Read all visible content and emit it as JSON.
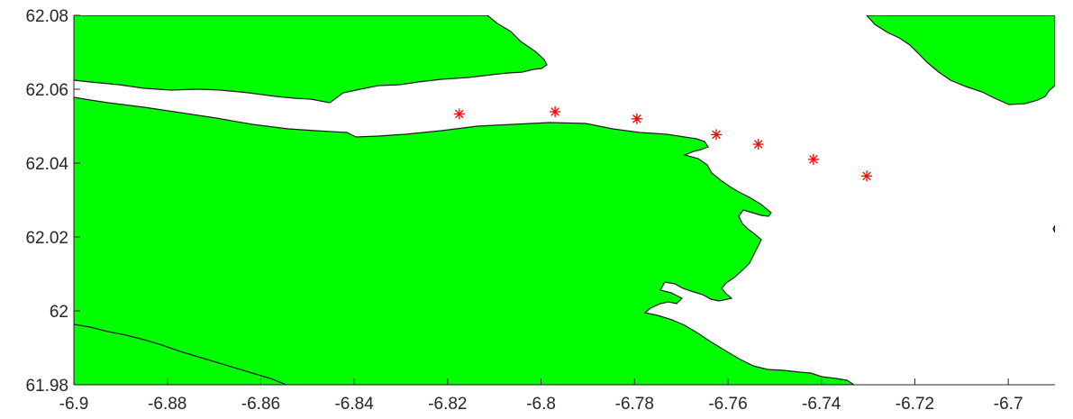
{
  "chart_data": {
    "type": "scatter",
    "map_background": true,
    "land_color": "#00ff00",
    "coastline_color": "#1a1a1a",
    "water_color": "#ffffff",
    "marker_color": "#ff0000",
    "marker_symbol": "*",
    "title": "",
    "xlabel": "",
    "ylabel": "",
    "xlim": [
      -6.9,
      -6.69
    ],
    "ylim": [
      61.98,
      62.08
    ],
    "grid": false,
    "xticks": [
      -6.9,
      -6.88,
      -6.86,
      -6.84,
      -6.82,
      -6.8,
      -6.78,
      -6.76,
      -6.74,
      -6.72,
      -6.7
    ],
    "yticks": [
      61.98,
      62,
      62.02,
      62.04,
      62.06,
      62.08
    ],
    "xtick_labels": [
      "-6.9",
      "-6.88",
      "-6.86",
      "-6.84",
      "-6.82",
      "-6.8",
      "-6.78",
      "-6.76",
      "-6.74",
      "-6.72",
      "-6.7"
    ],
    "ytick_labels": [
      "61.98",
      "62",
      "62.02",
      "62.04",
      "62.06",
      "62.08"
    ],
    "points": [
      {
        "x": -6.8175,
        "y": 62.0533
      },
      {
        "x": -6.797,
        "y": 62.0539
      },
      {
        "x": -6.7795,
        "y": 62.052
      },
      {
        "x": -6.7625,
        "y": 62.0477
      },
      {
        "x": -6.7535,
        "y": 62.0451
      },
      {
        "x": -6.7417,
        "y": 62.041
      },
      {
        "x": -6.7303,
        "y": 62.0365
      }
    ]
  }
}
